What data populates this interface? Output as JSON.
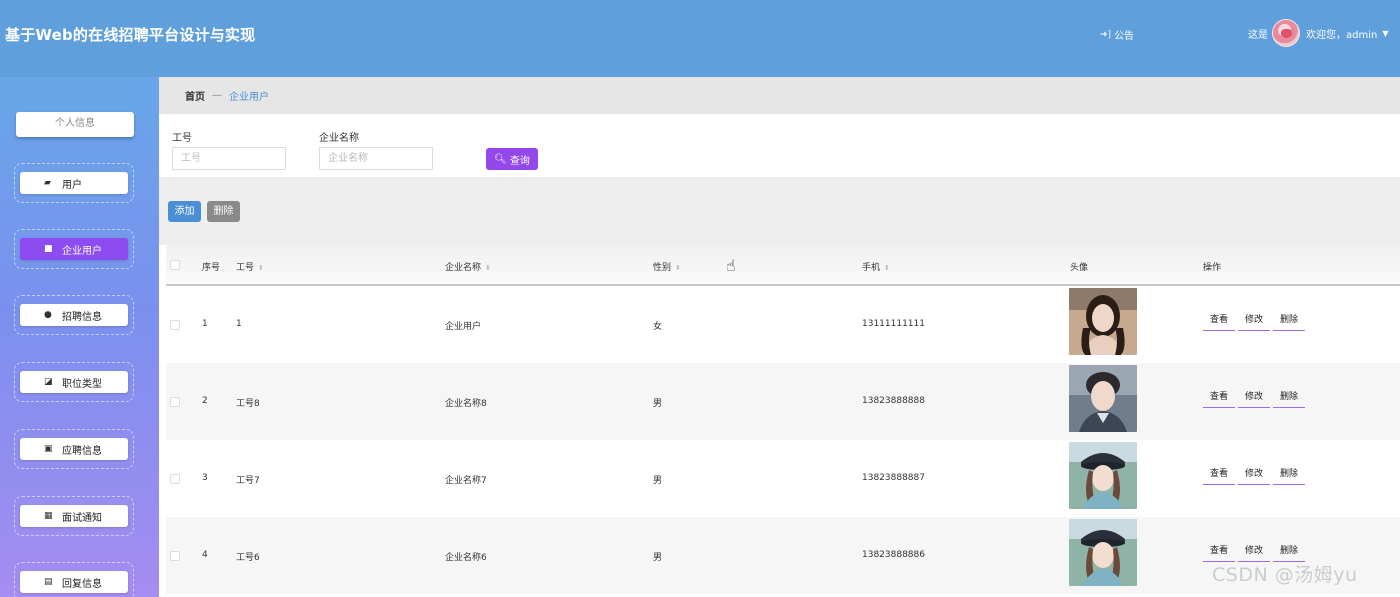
{
  "header": {
    "title": "基于Web的在线招聘平台设计与实现",
    "notice_label": "公告",
    "user_prefix": "这是",
    "welcome": "欢迎您，admin"
  },
  "sidebar": {
    "profile_label": "个人信息",
    "items": [
      {
        "label": "用户",
        "icon": "user-card-icon",
        "active": false
      },
      {
        "label": "企业用户",
        "icon": "briefcase-icon",
        "active": true
      },
      {
        "label": "招聘信息",
        "icon": "person-icon",
        "active": false
      },
      {
        "label": "职位类型",
        "icon": "chart-icon",
        "active": false
      },
      {
        "label": "应聘信息",
        "icon": "clipboard-check-icon",
        "active": false
      },
      {
        "label": "面试通知",
        "icon": "grid-icon",
        "active": false
      },
      {
        "label": "回复信息",
        "icon": "document-icon",
        "active": false
      }
    ]
  },
  "breadcrumb": {
    "home": "首页",
    "separator": "—",
    "current": "企业用户"
  },
  "search": {
    "field1_label": "工号",
    "field1_placeholder": "工号",
    "field2_label": "企业名称",
    "field2_placeholder": "企业名称",
    "query_label": "查询"
  },
  "actions": {
    "add_label": "添加",
    "delete_label": "删除"
  },
  "table": {
    "columns": {
      "index": "序号",
      "job_no": "工号",
      "company": "企业名称",
      "gender": "性别",
      "phone": "手机",
      "avatar": "头像",
      "ops": "操作"
    },
    "op_labels": {
      "view": "查看",
      "edit": "修改",
      "delete": "删除"
    },
    "rows": [
      {
        "index": "1",
        "job_no": "1",
        "company": "企业用户",
        "gender": "女",
        "phone": "13111111111"
      },
      {
        "index": "2",
        "job_no": "工号8",
        "company": "企业名称8",
        "gender": "男",
        "phone": "13823888888"
      },
      {
        "index": "3",
        "job_no": "工号7",
        "company": "企业名称7",
        "gender": "男",
        "phone": "13823888887"
      },
      {
        "index": "4",
        "job_no": "工号6",
        "company": "企业名称6",
        "gender": "男",
        "phone": "13823888886"
      }
    ]
  },
  "watermark": "CSDN @汤姆yu",
  "colors": {
    "header_bg": "#5f9fdc",
    "accent_purple": "#9448ec",
    "active_menu": "#8c4cf0",
    "add_button": "#4a8ed6",
    "delete_button": "#8a8a8a"
  }
}
